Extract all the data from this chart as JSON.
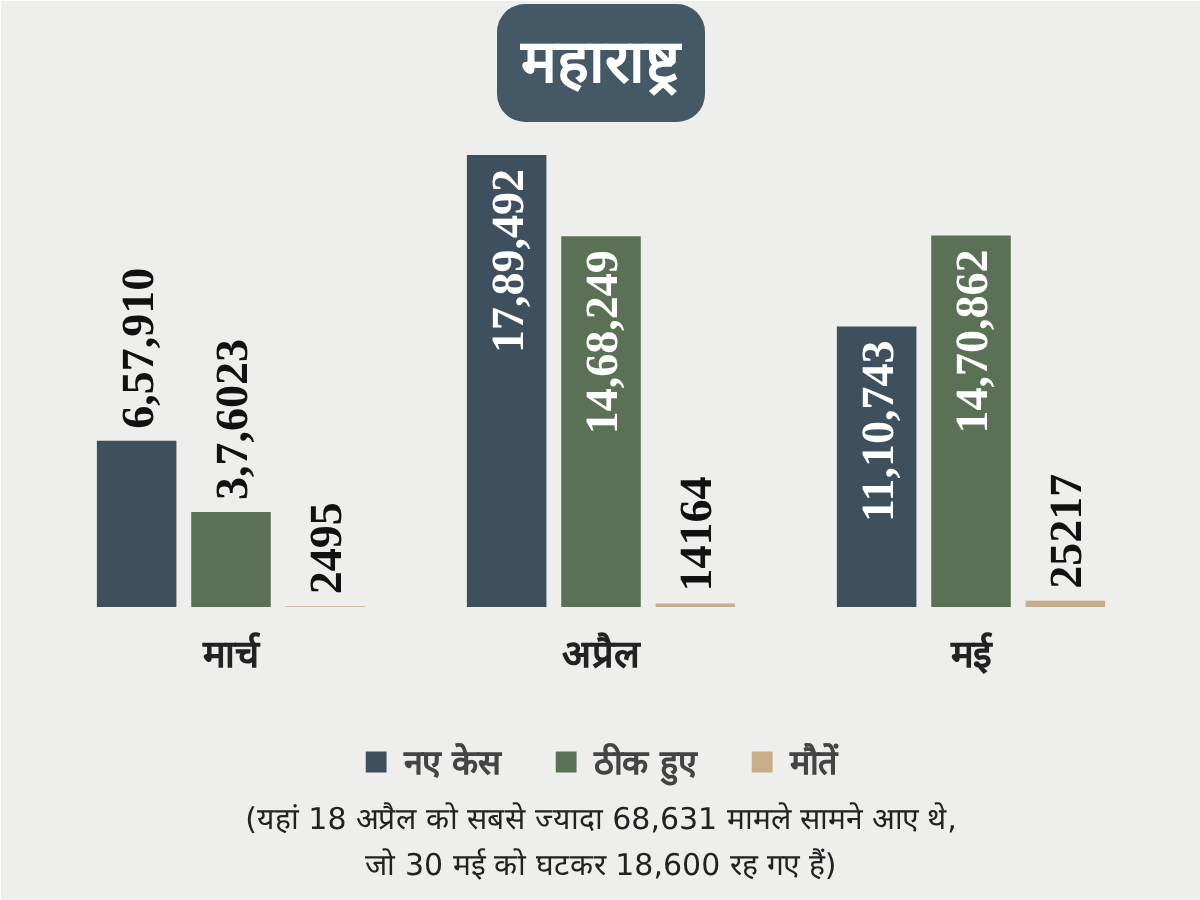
{
  "chart_data": {
    "type": "bar",
    "title": "महाराष्ट्र",
    "categories": [
      "मार्च",
      "अप्रैल",
      "मई"
    ],
    "series": [
      {
        "name": "नए केस",
        "color": "#3e505d",
        "values": [
          657910,
          1789492,
          1110743
        ],
        "value_labels": [
          "6,57,910",
          "17,89,492",
          "11,10,743"
        ]
      },
      {
        "name": "ठीक हुए",
        "color": "#5b7155",
        "values": [
          376023,
          1468249,
          1470862
        ],
        "value_labels": [
          "3,7,6023",
          "14,68,249",
          "14,70,862"
        ]
      },
      {
        "name": "मौतें",
        "color": "#c8ad8b",
        "values": [
          2495,
          14164,
          25217
        ],
        "value_labels": [
          "2495",
          "14164",
          "25217"
        ]
      }
    ],
    "legend": "bottom",
    "annotations": [
      "(यहां 18 अप्रैल को सबसे ज्यादा 68,631 मामले सामने आए थे, जो 30 मई को घटकर 18,600 रह गए हैं)"
    ]
  }
}
